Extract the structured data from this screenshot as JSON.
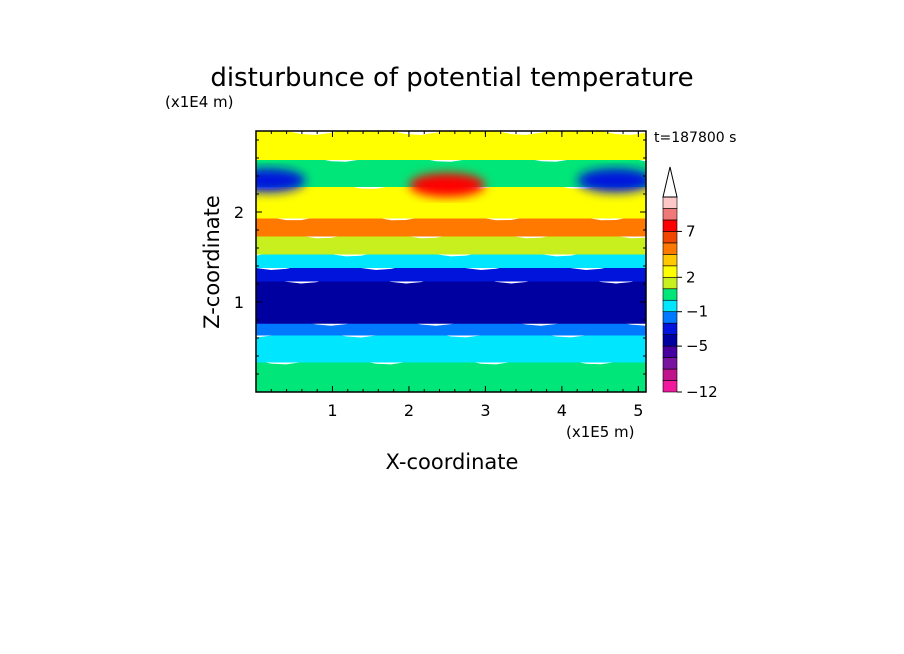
{
  "chart_data": {
    "type": "heatmap",
    "title": "disturbunce of potential temperature",
    "time_label": "t=187800 s",
    "xlabel": "X-coordinate",
    "ylabel": "Z-coordinate",
    "x_unit": "(x1E5 m)",
    "y_unit": "(x1E4 m)",
    "xlim": [
      0,
      5.1
    ],
    "ylim": [
      0,
      2.9
    ],
    "x_ticks": [
      "1",
      "2",
      "3",
      "4",
      "5"
    ],
    "y_ticks": [
      "1",
      "2"
    ],
    "colorbar": {
      "colors": [
        "#f0189c",
        "#c0148c",
        "#7814a0",
        "#4600a0",
        "#0000a0",
        "#0014dc",
        "#0078ff",
        "#00e6ff",
        "#00e678",
        "#c8f01e",
        "#ffff00",
        "#ffc800",
        "#ff7800",
        "#f04600",
        "#ff0000",
        "#f07878",
        "#ffc8c8"
      ],
      "labels": [
        "-12",
        "-5",
        "-1",
        "2",
        "7"
      ],
      "label_levels": [
        0,
        4,
        7,
        10,
        14
      ]
    },
    "field_bands": [
      {
        "z": [
          0.0,
          0.35
        ],
        "level_index": 8
      },
      {
        "z": [
          0.35,
          0.65
        ],
        "level_index": 7
      },
      {
        "z": [
          0.65,
          0.78
        ],
        "level_index": 6
      },
      {
        "z": [
          0.78,
          1.25
        ],
        "level_index": 4
      },
      {
        "z": [
          1.25,
          1.4
        ],
        "level_index": 5
      },
      {
        "z": [
          1.4,
          1.55
        ],
        "level_index": 7
      },
      {
        "z": [
          1.55,
          1.75
        ],
        "level_index": 9
      },
      {
        "z": [
          1.75,
          1.95
        ],
        "level_index": 12
      },
      {
        "z": [
          1.95,
          2.3
        ],
        "level_index": 10
      },
      {
        "z": [
          2.3,
          2.6
        ],
        "level_index": 8
      },
      {
        "z": [
          2.6,
          2.9
        ],
        "level_index": 10
      }
    ],
    "features": [
      {
        "name": "warm-core-upper",
        "x": 2.5,
        "z": 2.3,
        "level_index": 14
      },
      {
        "name": "cold-pool-right",
        "x": 4.7,
        "z": 2.35,
        "level_index": 5
      },
      {
        "name": "cold-pool-left",
        "x": 0.15,
        "z": 2.35,
        "level_index": 5
      }
    ]
  }
}
